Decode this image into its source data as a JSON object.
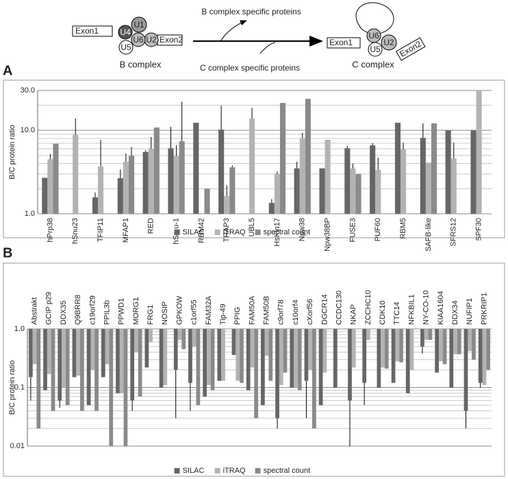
{
  "diagram": {
    "b_complex": {
      "label": "B complex",
      "exons": [
        "Exon1",
        "Exon2"
      ],
      "snrnps": [
        "U4",
        "U1",
        "U6",
        "U5",
        "U2"
      ]
    },
    "c_complex": {
      "label": "C complex",
      "exons": [
        "Exon1",
        "Exon2"
      ],
      "snrnps": [
        "U6",
        "U5",
        "U2"
      ]
    },
    "b_specific_label": "B complex specific proteins",
    "c_specific_label": "C complex specific proteins"
  },
  "chart_data": [
    {
      "type": "bar",
      "panel": "A",
      "y_label": "B/C protein ratio",
      "log_y": true,
      "grid": true,
      "legend": "bottom",
      "categories": [
        "hPrp38",
        "hSnu23",
        "TFIP11",
        "MFAP1",
        "RED",
        "hSmu-1",
        "RBM42",
        "TRAP3",
        "UBL5",
        "HsKin17",
        "Npw38",
        "Npw38BP",
        "FUSE3",
        "PUF60",
        "RBM5",
        "SAFB-like",
        "SFRS12",
        "SPF30"
      ],
      "series": [
        {
          "name": "SILAC",
          "color": "#666666",
          "values": [
            2.7,
            null,
            1.57,
            2.67,
            5.5,
            6.1,
            12.3,
            10.2,
            null,
            1.35,
            3.5,
            3.5,
            6.1,
            6.6,
            12.3,
            8.1,
            10,
            10
          ],
          "errors": [
            null,
            null,
            0.23,
            0.73,
            0.3,
            4.9,
            null,
            9.5,
            null,
            0.15,
            0.7,
            null,
            0.4,
            0.4,
            null,
            4,
            null,
            null
          ]
        },
        {
          "name": "iTRAQ",
          "color": "#b3b3b3",
          "values": [
            4.5,
            8.8,
            3.7,
            4.2,
            6.0,
            4.9,
            null,
            1.63,
            13.8,
            3.0,
            8.1,
            7.7,
            3.5,
            3.35,
            5.9,
            4.1,
            4.6,
            30
          ],
          "errors": [
            0.7,
            5,
            4,
            1.1,
            2.3,
            1.7,
            null,
            0.57,
            4.8,
            0.2,
            1.2,
            null,
            0.5,
            1.35,
            1.2,
            null,
            2.5,
            null
          ]
        },
        {
          "name": "spectral count",
          "color": "#8a8a8a",
          "values": [
            6.9,
            null,
            null,
            4.97,
            10.8,
            7.4,
            2.0,
            3.6,
            null,
            21.3,
            23.8,
            null,
            3.0,
            null,
            null,
            12.1,
            null,
            null
          ],
          "errors": [
            null,
            null,
            null,
            1.33,
            null,
            14.6,
            null,
            0.2,
            null,
            null,
            null,
            null,
            null,
            null,
            null,
            null,
            null,
            null
          ]
        }
      ],
      "ylim": [
        1,
        30
      ],
      "yticks": [
        {
          "value": 1,
          "label": "1.0"
        },
        {
          "value": 10,
          "label": "10.0"
        },
        {
          "value": 30,
          "label": "30.0"
        }
      ],
      "minor_yticks": [
        2,
        3,
        4,
        5,
        6,
        7,
        8,
        9,
        20
      ]
    },
    {
      "type": "bar",
      "panel": "B",
      "y_label": "B/C protein ratio",
      "log_y": true,
      "grid": true,
      "legend": "bottom",
      "categories": [
        "Abstrakt",
        "GCIP p29",
        "DDX35",
        "Q9BRR8",
        "c19orf29",
        "PPIL3b",
        "PPWD1",
        "MORG1",
        "FRG1",
        "NOSIP",
        "GPKOW",
        "c1orf55",
        "FAM32A",
        "Tip-49",
        "PPIG",
        "FAM50A",
        "FAM50B",
        "c9orf78",
        "c10orf4",
        "cXorf56",
        "DGCR14",
        "CCDC130",
        "NKAP",
        "ZCCHC10",
        "CDK10",
        "TTC14",
        "NFKBIL1",
        "NY-CO-10",
        "KIAA1604",
        "DDX34",
        "NUFIP1",
        "PRKRIP1"
      ],
      "series": [
        {
          "name": "SILAC",
          "color": "#666666",
          "values": [
            0.15,
            0.09,
            0.06,
            0.15,
            0.05,
            0.15,
            0.08,
            0.06,
            0.22,
            0.1,
            0.2,
            0.12,
            0.07,
            0.13,
            0.36,
            0.09,
            0.05,
            0.03,
            0.1,
            0.13,
            0.05,
            0.1,
            0.06,
            0.12,
            0.1,
            0.12,
            0.08,
            0.5,
            0.18,
            0.1,
            0.04,
            0.12
          ],
          "errors": [
            0.09,
            null,
            0.015,
            null,
            null,
            null,
            null,
            0.02,
            null,
            null,
            0.17,
            0.08,
            null,
            null,
            null,
            null,
            null,
            0.01,
            null,
            0.1,
            null,
            null,
            0.05,
            0.07,
            null,
            null,
            null,
            0.12,
            null,
            null,
            0.02,
            0.02
          ]
        },
        {
          "name": "iTRAQ",
          "color": "#b3b3b3",
          "values": [
            0.25,
            0.17,
            0.1,
            0.16,
            0.2,
            0.25,
            0.08,
            0.4,
            0.6,
            0.11,
            0.65,
            0.5,
            0.11,
            0.13,
            0.13,
            0.22,
            0.35,
            0.11,
            0.1,
            0.2,
            0.18,
            null,
            0.22,
            0.65,
            0.22,
            0.28,
            0.2,
            0.65,
            0.28,
            0.37,
            0.42,
            0.11
          ]
        },
        {
          "name": "spectral count",
          "color": "#8a8a8a",
          "values": [
            0.02,
            0.04,
            0.05,
            0.04,
            0.04,
            0.01,
            0.01,
            0.07,
            null,
            null,
            0.45,
            0.05,
            0.09,
            null,
            0.12,
            0.03,
            0.13,
            0.18,
            0.09,
            0.02,
            null,
            null,
            null,
            null,
            0.21,
            0.27,
            null,
            0.65,
            0.25,
            0.37,
            0.3,
            0.2
          ]
        }
      ],
      "ylim": [
        0.01,
        1
      ],
      "yticks": [
        {
          "value": 0.01,
          "label": "0.01"
        },
        {
          "value": 0.1,
          "label": "0.1"
        },
        {
          "value": 1,
          "label": "1.0"
        }
      ],
      "minor_yticks": [
        0.02,
        0.03,
        0.04,
        0.05,
        0.06,
        0.07,
        0.08,
        0.09,
        0.2,
        0.3,
        0.4,
        0.5,
        0.6,
        0.7,
        0.8,
        0.9
      ]
    }
  ]
}
